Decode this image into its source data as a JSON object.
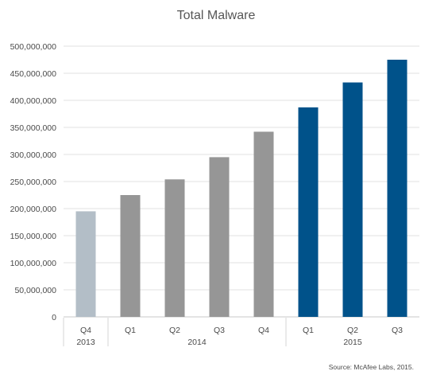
{
  "chart_data": {
    "type": "bar",
    "title": "Total Malware",
    "xlabel": "",
    "ylabel": "",
    "ylim": [
      0,
      500000000
    ],
    "yticks": [
      0,
      50000000,
      100000000,
      150000000,
      200000000,
      250000000,
      300000000,
      350000000,
      400000000,
      450000000,
      500000000
    ],
    "ytick_labels": [
      "0",
      "50,000,000",
      "100,000,000",
      "150,000,000",
      "200,000,000",
      "250,000,000",
      "300,000,000",
      "350,000,000",
      "400,000,000",
      "450,000,000",
      "500,000,000"
    ],
    "categories": [
      "Q4",
      "Q1",
      "Q2",
      "Q3",
      "Q4",
      "Q1",
      "Q2",
      "Q3"
    ],
    "category_groups": [
      {
        "label": "2013",
        "start": 0,
        "end": 0
      },
      {
        "label": "2014",
        "start": 1,
        "end": 4
      },
      {
        "label": "2015",
        "start": 5,
        "end": 7
      }
    ],
    "values": [
      195000000,
      225000000,
      254000000,
      295000000,
      342000000,
      387000000,
      433000000,
      475000000
    ],
    "bar_colors": [
      "#b3bec7",
      "#969696",
      "#969696",
      "#969696",
      "#969696",
      "#00528a",
      "#00528a",
      "#00528a"
    ],
    "grid": true,
    "legend": "none",
    "source": "Source: McAfee Labs, 2015."
  }
}
